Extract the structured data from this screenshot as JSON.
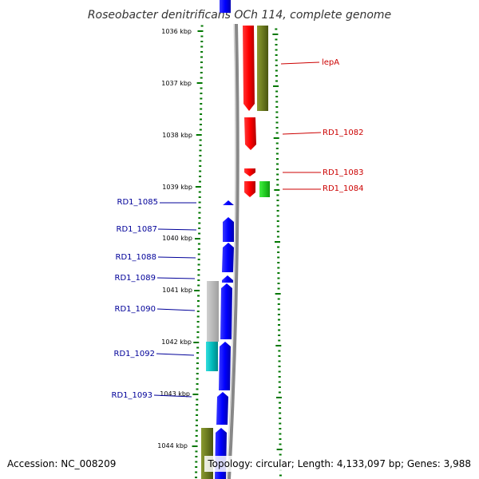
{
  "title": "Roseobacter denitrificans OCh 114, complete genome",
  "ticks": [
    {
      "label": "1036 kbp",
      "kbp": 1036
    },
    {
      "label": "1037 kbp",
      "kbp": 1037
    },
    {
      "label": "1038 kbp",
      "kbp": 1038
    },
    {
      "label": "1039 kbp",
      "kbp": 1039
    },
    {
      "label": "1040 kbp",
      "kbp": 1040
    },
    {
      "label": "1041 kbp",
      "kbp": 1041
    },
    {
      "label": "1042 kbp",
      "kbp": 1042
    },
    {
      "label": "1043 kbp",
      "kbp": 1043
    },
    {
      "label": "1044 kbp",
      "kbp": 1044
    }
  ],
  "gene_labels": {
    "lepA": "lepA",
    "rd1082": "RD1_1082",
    "rd1083": "RD1_1083",
    "rd1084": "RD1_1084",
    "rd1085": "RD1_1085",
    "rd1087": "RD1_1087",
    "rd1088": "RD1_1088",
    "rd1089": "RD1_1089",
    "rd1090": "RD1_1090",
    "rd1092": "RD1_1092",
    "rd1093": "RD1_1093"
  },
  "colors": {
    "forward_cds": "#ff0000",
    "reverse_cds": "#0000ff",
    "olive_feature": "#6b7a1f",
    "green_feature": "#22cc22",
    "gray_feature": "#b8b8b8",
    "cyan_feature": "#00bbbb",
    "backbone": "#888888",
    "tick": "#007700",
    "right_label": "#cc0000",
    "left_label": "#000099"
  },
  "footer": {
    "accession": "Accession: NC_008209",
    "summary": "Topology: circular; Length: 4,133,097 bp; Genes: 3,988"
  }
}
